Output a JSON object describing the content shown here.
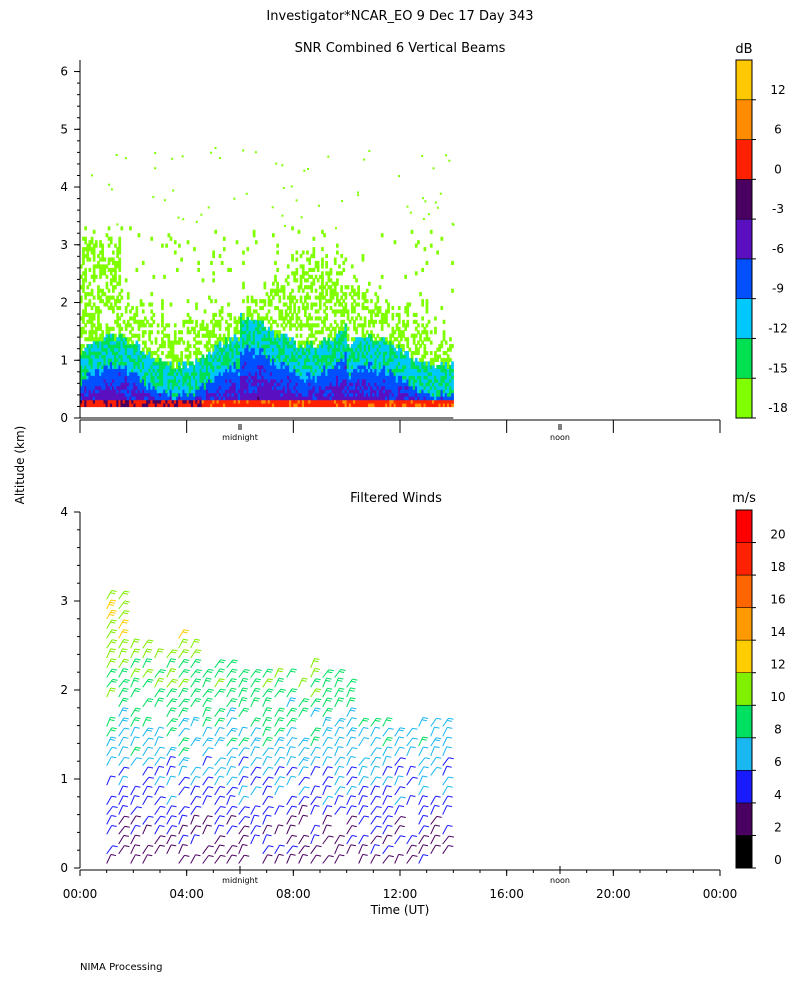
{
  "header": {
    "title": "Investigator*NCAR_EO   9 Dec 17 Day 343"
  },
  "footer": {
    "credit": "NIMA Processing"
  },
  "shared": {
    "ylabel": "Altitude (km)",
    "xlabel": "Time (UT)",
    "x_ticks": [
      "00:00",
      "04:00",
      "08:00",
      "12:00",
      "16:00",
      "20:00",
      "00:00"
    ],
    "marker_midnight": "midnight",
    "marker_noon": "noon"
  },
  "chart_data": [
    {
      "type": "heatmap",
      "title": "SNR Combined 6 Vertical Beams",
      "xlabel": "",
      "ylabel": "Altitude (km)",
      "xlim": [
        0,
        24
      ],
      "ylim": [
        0,
        6.2
      ],
      "y_ticks": [
        0,
        1,
        2,
        3,
        4,
        5,
        6
      ],
      "data_end_hour": 14,
      "colorbar": {
        "unit": "dB",
        "tick_labels": [
          12,
          6,
          0,
          -3,
          -6,
          -9,
          -12,
          -15,
          -18
        ],
        "colors": [
          "#7fff00",
          "#00e050",
          "#00c8ff",
          "#0050ff",
          "#5a10c0",
          "#4a0060",
          "#ff2000",
          "#ff8c00",
          "#ffc800"
        ]
      },
      "description": "Signal-to-noise ratio vs time and altitude"
    },
    {
      "type": "scatter",
      "title": "Filtered Winds",
      "xlabel": "Time (UT)",
      "ylabel": "Altitude (km)",
      "xlim": [
        0,
        24
      ],
      "ylim": [
        0,
        4
      ],
      "y_ticks": [
        0,
        1,
        2,
        3,
        4
      ],
      "data_end_hour": 14,
      "colorbar": {
        "unit": "m/s",
        "tick_labels": [
          0,
          2,
          4,
          6,
          8,
          10,
          12,
          14,
          16,
          18,
          20
        ],
        "colors": [
          "#000000",
          "#4a0060",
          "#1a1aff",
          "#19b8f0",
          "#00e060",
          "#80ef00",
          "#ffcc00",
          "#ff9900",
          "#ff6600",
          "#ff2200",
          "#ff0000"
        ]
      },
      "description": "Wind barbs colored by wind speed"
    }
  ]
}
